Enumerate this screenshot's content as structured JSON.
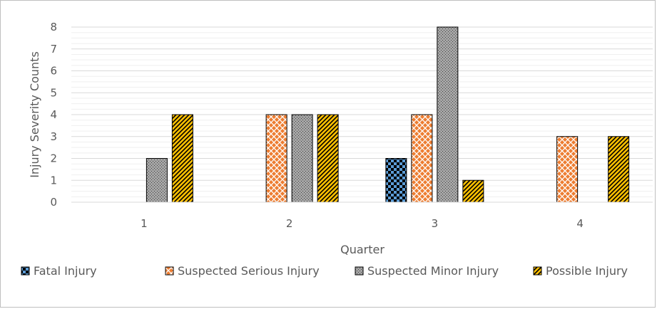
{
  "chart_data": {
    "type": "bar",
    "title": "",
    "xlabel": "Quarter",
    "ylabel": "Injury Severity Counts",
    "categories": [
      "1",
      "2",
      "3",
      "4"
    ],
    "ylim": [
      0,
      8
    ],
    "yticks": [
      "0",
      "1",
      "2",
      "3",
      "4",
      "5",
      "6",
      "7",
      "8"
    ],
    "grid": true,
    "legend_position": "bottom",
    "series": [
      {
        "name": "Fatal Injury",
        "values": [
          0,
          0,
          2,
          0
        ],
        "color": "#5b9bd5",
        "pattern": "checker"
      },
      {
        "name": "Suspected Serious Injury",
        "values": [
          0,
          4,
          4,
          3
        ],
        "color": "#ed7d31",
        "pattern": "crosshatch"
      },
      {
        "name": "Suspected Minor Injury",
        "values": [
          2,
          4,
          8,
          0
        ],
        "color": "#a5a5a5",
        "pattern": "dots"
      },
      {
        "name": "Possible Injury",
        "values": [
          4,
          4,
          1,
          3
        ],
        "color": "#ffc000",
        "pattern": "diagonal"
      }
    ]
  }
}
